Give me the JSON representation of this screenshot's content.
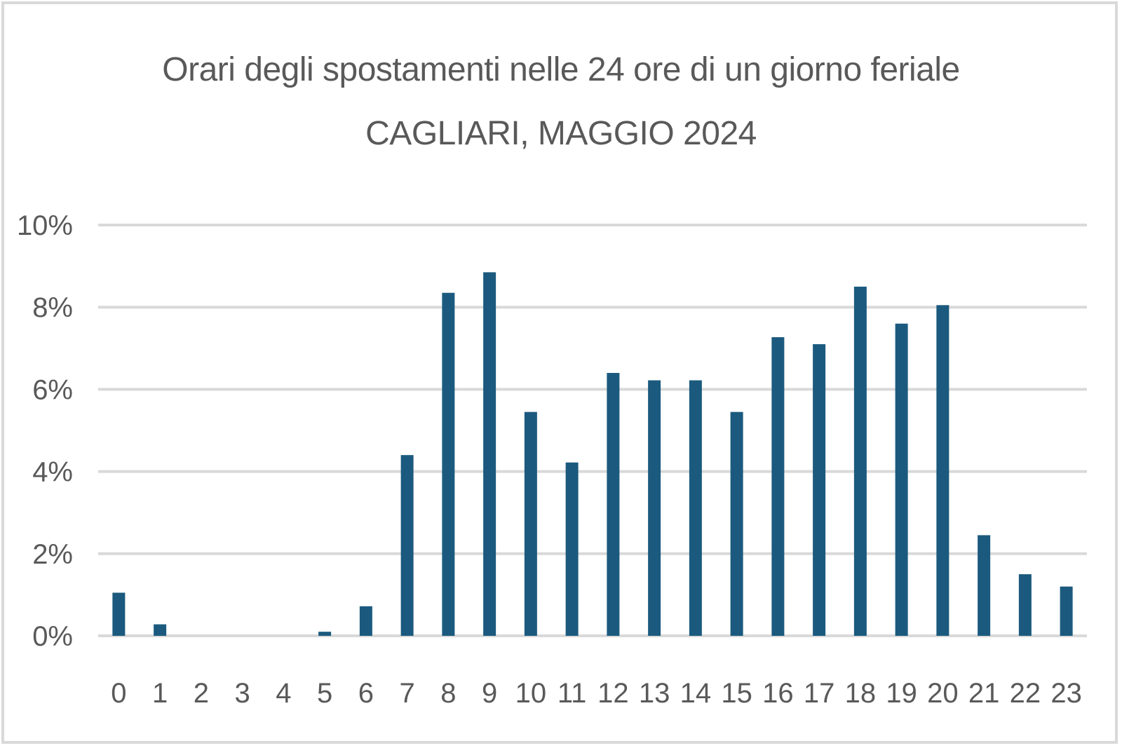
{
  "chart_data": {
    "type": "bar",
    "title": "Orari degli spostamenti nelle 24 ore di un giorno feriale",
    "subtitle": "CAGLIARI, MAGGIO 2024",
    "xlabel": "",
    "ylabel": "",
    "categories": [
      "0",
      "1",
      "2",
      "3",
      "4",
      "5",
      "6",
      "7",
      "8",
      "9",
      "10",
      "11",
      "12",
      "13",
      "14",
      "15",
      "16",
      "17",
      "18",
      "19",
      "20",
      "21",
      "22",
      "23"
    ],
    "values": [
      1.05,
      0.28,
      0,
      0,
      0,
      0.1,
      0.72,
      4.4,
      8.35,
      8.85,
      5.45,
      4.22,
      6.4,
      6.22,
      6.22,
      5.45,
      7.27,
      7.1,
      8.5,
      7.6,
      8.05,
      2.45,
      1.5,
      1.2
    ],
    "value_unit": "%",
    "ylim": [
      0,
      10
    ],
    "yticks": [
      "0%",
      "2%",
      "4%",
      "6%",
      "8%",
      "10%"
    ],
    "ytick_values": [
      0,
      2,
      4,
      6,
      8,
      10
    ],
    "grid": true,
    "legend": "none",
    "bar_color": "#1b5a7e",
    "grid_color": "#d9d9d9",
    "text_color": "#595959"
  }
}
